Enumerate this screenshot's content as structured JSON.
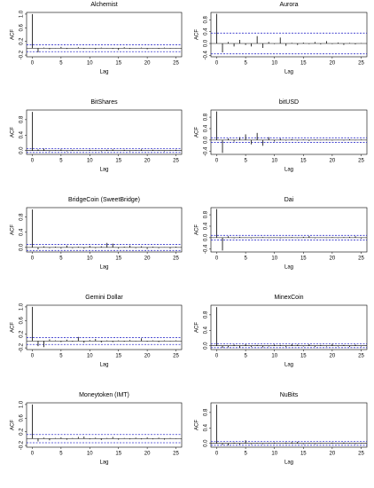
{
  "chart_data": [
    {
      "type": "stem",
      "title": "Alchemist",
      "x_label": "Lag",
      "y_label": "ACF",
      "color": "#000000",
      "ci_color": "#3333cc",
      "x": [
        0,
        1,
        2,
        3,
        4,
        5,
        6,
        7,
        8,
        9,
        10,
        11,
        12,
        13,
        14,
        15,
        16,
        17,
        18,
        19,
        20,
        21,
        22,
        23,
        24,
        25
      ],
      "values": [
        1,
        -0.12,
        0.02,
        -0.03,
        0.01,
        0.04,
        -0.02,
        0.01,
        0.03,
        -0.02,
        0.01,
        -0.03,
        0.02,
        0.01,
        -0.02,
        -0.05,
        0.03,
        -0.02,
        0.01,
        0.02,
        -0.03,
        0.01,
        -0.02,
        0.02,
        -0.01,
        0.01
      ],
      "ci": [
        -0.1,
        0.1
      ],
      "xlim": [
        -1,
        26
      ],
      "xticks": [
        0,
        5,
        10,
        15,
        20,
        25
      ],
      "ylim": [
        -0.25,
        1.05
      ],
      "yticks": [
        -0.2,
        0.2,
        0.6,
        {
          "value": 1,
          "label": "1.0"
        }
      ]
    },
    {
      "type": "stem",
      "title": "Aurora",
      "x_label": "Lag",
      "y_label": "ACF",
      "color": "#000000",
      "ci_color": "#3333cc",
      "x": [
        0,
        1,
        2,
        3,
        4,
        5,
        6,
        7,
        8,
        9,
        10,
        11,
        12,
        13,
        14,
        15,
        16,
        17,
        18,
        19,
        20,
        21,
        22,
        23,
        24,
        25
      ],
      "values": [
        1,
        -0.3,
        0.05,
        -0.1,
        0.12,
        -0.05,
        -0.1,
        0.25,
        -0.15,
        0.05,
        -0.02,
        0.2,
        -0.08,
        0.02,
        -0.05,
        0.03,
        -0.02,
        0.05,
        -0.03,
        0.08,
        -0.02,
        0.03,
        -0.05,
        0.02,
        -0.03,
        0.01
      ],
      "ci": [
        -0.35,
        0.35
      ],
      "xlim": [
        -1,
        26
      ],
      "xticks": [
        0,
        5,
        10,
        15,
        20,
        25
      ],
      "ylim": [
        -0.45,
        1.05
      ],
      "yticks": [
        -0.4,
        {
          "value": 0,
          "label": "0.0"
        },
        0.4,
        0.8
      ]
    },
    {
      "type": "stem",
      "title": "BitShares",
      "x_label": "Lag",
      "y_label": "ACF",
      "color": "#000000",
      "ci_color": "#3333cc",
      "x": [
        0,
        1,
        2,
        3,
        4,
        5,
        6,
        7,
        8,
        9,
        10,
        11,
        12,
        13,
        14,
        15,
        16,
        17,
        18,
        19,
        20,
        21,
        22,
        23,
        24,
        25
      ],
      "values": [
        1,
        0.03,
        0.05,
        -0.02,
        0.01,
        0.03,
        -0.02,
        0.02,
        0.01,
        -0.01,
        0.02,
        0.01,
        -0.02,
        0.02,
        0.03,
        -0.01,
        0.02,
        -0.02,
        0.01,
        0.03,
        -0.01,
        0.02,
        0.01,
        -0.02,
        0.01,
        0.02
      ],
      "ci": [
        -0.05,
        0.05
      ],
      "xlim": [
        -1,
        26
      ],
      "xticks": [
        0,
        5,
        10,
        15,
        20,
        25
      ],
      "ylim": [
        -0.1,
        1.05
      ],
      "yticks": [
        {
          "value": 0,
          "label": "0.0"
        },
        0.4,
        0.8
      ]
    },
    {
      "type": "stem",
      "title": "bitUSD",
      "x_label": "Lag",
      "y_label": "ACF",
      "color": "#000000",
      "ci_color": "#3333cc",
      "x": [
        0,
        1,
        2,
        3,
        4,
        5,
        6,
        7,
        8,
        9,
        10,
        11,
        12,
        13,
        14,
        15,
        16,
        17,
        18,
        19,
        20,
        21,
        22,
        23,
        24,
        25
      ],
      "values": [
        1,
        -0.45,
        0.05,
        -0.05,
        0.1,
        0.2,
        -0.15,
        0.25,
        -0.2,
        0.1,
        -0.05,
        0.05,
        -0.02,
        0.03,
        -0.02,
        0.02,
        -0.03,
        0.02,
        -0.01,
        0.02,
        -0.02,
        0.01,
        -0.02,
        0.03,
        -0.01,
        0.02
      ],
      "ci": [
        -0.08,
        0.08
      ],
      "xlim": [
        -1,
        26
      ],
      "xticks": [
        0,
        5,
        10,
        15,
        20,
        25
      ],
      "ylim": [
        -0.5,
        1.05
      ],
      "yticks": [
        -0.4,
        {
          "value": 0,
          "label": "0.0"
        },
        0.4,
        0.8
      ]
    },
    {
      "type": "stem",
      "title": "BridgeCoin (SweetBridge)",
      "x_label": "Lag",
      "y_label": "ACF",
      "color": "#000000",
      "ci_color": "#3333cc",
      "x": [
        0,
        1,
        2,
        3,
        4,
        5,
        6,
        7,
        8,
        9,
        10,
        11,
        12,
        13,
        14,
        15,
        16,
        17,
        18,
        19,
        20,
        21,
        22,
        23,
        24,
        25
      ],
      "values": [
        1,
        -0.05,
        0.03,
        -0.02,
        0.02,
        -0.03,
        0.05,
        -0.02,
        0.02,
        -0.03,
        0.04,
        -0.02,
        0.03,
        0.12,
        0.1,
        -0.03,
        0.02,
        0.05,
        -0.02,
        0.03,
        -0.04,
        0.02,
        -0.02,
        0.01,
        -0.03,
        0.02
      ],
      "ci": [
        -0.08,
        0.08
      ],
      "xlim": [
        -1,
        26
      ],
      "xticks": [
        0,
        5,
        10,
        15,
        20,
        25
      ],
      "ylim": [
        -0.12,
        1.05
      ],
      "yticks": [
        {
          "value": 0,
          "label": "0.0"
        },
        0.4,
        0.8
      ]
    },
    {
      "type": "stem",
      "title": "Dai",
      "x_label": "Lag",
      "y_label": "ACF",
      "color": "#000000",
      "ci_color": "#3333cc",
      "x": [
        0,
        1,
        2,
        3,
        4,
        5,
        6,
        7,
        8,
        9,
        10,
        11,
        12,
        13,
        14,
        15,
        16,
        17,
        18,
        19,
        20,
        21,
        22,
        23,
        24,
        25
      ],
      "values": [
        1,
        -0.45,
        0.05,
        -0.02,
        0.03,
        0.01,
        -0.02,
        0.01,
        0.02,
        -0.01,
        0.01,
        -0.02,
        0.01,
        0.02,
        -0.01,
        0.03,
        0.06,
        -0.02,
        0.01,
        -0.01,
        0.02,
        -0.01,
        0.02,
        0.03,
        0.05,
        -0.03
      ],
      "ci": [
        -0.08,
        0.08
      ],
      "xlim": [
        -1,
        26
      ],
      "xticks": [
        0,
        5,
        10,
        15,
        20,
        25
      ],
      "ylim": [
        -0.5,
        1.05
      ],
      "yticks": [
        -0.4,
        {
          "value": 0,
          "label": "0.0"
        },
        0.4,
        0.8
      ]
    },
    {
      "type": "stem",
      "title": "Gemini Dollar",
      "x_label": "Lag",
      "y_label": "ACF",
      "color": "#000000",
      "ci_color": "#3333cc",
      "x": [
        0,
        1,
        2,
        3,
        4,
        5,
        6,
        7,
        8,
        9,
        10,
        11,
        12,
        13,
        14,
        15,
        16,
        17,
        18,
        19,
        20,
        21,
        22,
        23,
        24,
        25
      ],
      "values": [
        1,
        -0.15,
        -0.18,
        0.05,
        0.02,
        -0.03,
        0.04,
        -0.02,
        0.12,
        -0.05,
        0.03,
        0.06,
        -0.04,
        0.02,
        -0.03,
        0.02,
        -0.02,
        0.03,
        -0.01,
        0.08,
        -0.02,
        0.02,
        -0.03,
        0.02,
        -0.01,
        0.02
      ],
      "ci": [
        -0.1,
        0.1
      ],
      "xlim": [
        -1,
        26
      ],
      "xticks": [
        0,
        5,
        10,
        15,
        20,
        25
      ],
      "ylim": [
        -0.25,
        1.05
      ],
      "yticks": [
        -0.2,
        0.2,
        0.6,
        {
          "value": 1,
          "label": "1.0"
        }
      ]
    },
    {
      "type": "stem",
      "title": "MinexCoin",
      "x_label": "Lag",
      "y_label": "ACF",
      "color": "#000000",
      "ci_color": "#3333cc",
      "x": [
        0,
        1,
        2,
        3,
        4,
        5,
        6,
        7,
        8,
        9,
        10,
        11,
        12,
        13,
        14,
        15,
        16,
        17,
        18,
        19,
        20,
        21,
        22,
        23,
        24,
        25
      ],
      "values": [
        1,
        -0.05,
        -0.04,
        0.03,
        -0.05,
        0.04,
        -0.03,
        0.02,
        -0.04,
        -0.02,
        0.03,
        0.02,
        -0.03,
        0.04,
        0.03,
        -0.02,
        0.04,
        -0.03,
        0.02,
        -0.02,
        0.05,
        -0.02,
        0.02,
        -0.03,
        0.03,
        -0.02
      ],
      "ci": [
        -0.05,
        0.05
      ],
      "xlim": [
        -1,
        26
      ],
      "xticks": [
        0,
        5,
        10,
        15,
        20,
        25
      ],
      "ylim": [
        -0.1,
        1.05
      ],
      "yticks": [
        {
          "value": 0,
          "label": "0.0"
        },
        0.4,
        0.8
      ]
    },
    {
      "type": "stem",
      "title": "Moneytoken (IMT)",
      "x_label": "Lag",
      "y_label": "ACF",
      "color": "#000000",
      "ci_color": "#3333cc",
      "x": [
        0,
        1,
        2,
        3,
        4,
        5,
        6,
        7,
        8,
        9,
        10,
        11,
        12,
        13,
        14,
        15,
        16,
        17,
        18,
        19,
        20,
        21,
        22,
        23,
        24,
        25
      ],
      "values": [
        1,
        -0.08,
        0.03,
        -0.05,
        0.02,
        0.04,
        -0.03,
        0.02,
        0.05,
        0.06,
        -0.02,
        0.03,
        -0.04,
        0.02,
        0.05,
        -0.03,
        0.02,
        -0.02,
        0.03,
        -0.02,
        0.04,
        -0.02,
        0.03,
        -0.03,
        0.02,
        -0.01
      ],
      "ci": [
        -0.12,
        0.12
      ],
      "xlim": [
        -1,
        26
      ],
      "xticks": [
        0,
        5,
        10,
        15,
        20,
        25
      ],
      "ylim": [
        -0.25,
        1.05
      ],
      "yticks": [
        -0.2,
        0.2,
        0.6,
        {
          "value": 1,
          "label": "1.0"
        }
      ]
    },
    {
      "type": "stem",
      "title": "NuBits",
      "x_label": "Lag",
      "y_label": "ACF",
      "color": "#000000",
      "ci_color": "#3333cc",
      "x": [
        0,
        1,
        2,
        3,
        4,
        5,
        6,
        7,
        8,
        9,
        10,
        11,
        12,
        13,
        14,
        15,
        16,
        17,
        18,
        19,
        20,
        21,
        22,
        23,
        24,
        25
      ],
      "values": [
        1,
        -0.04,
        -0.05,
        0.02,
        -0.03,
        0.08,
        -0.02,
        0.01,
        -0.02,
        0.01,
        0.02,
        -0.01,
        0.02,
        0.03,
        0.04,
        -0.02,
        0.01,
        -0.02,
        0.01,
        -0.01,
        0.02,
        -0.01,
        0.02,
        0.01,
        -0.02,
        0.01
      ],
      "ci": [
        -0.05,
        0.05
      ],
      "xlim": [
        -1,
        26
      ],
      "xticks": [
        0,
        5,
        10,
        15,
        20,
        25
      ],
      "ylim": [
        -0.1,
        1.05
      ],
      "yticks": [
        {
          "value": 0,
          "label": "0.0"
        },
        0.4,
        0.8
      ]
    }
  ]
}
